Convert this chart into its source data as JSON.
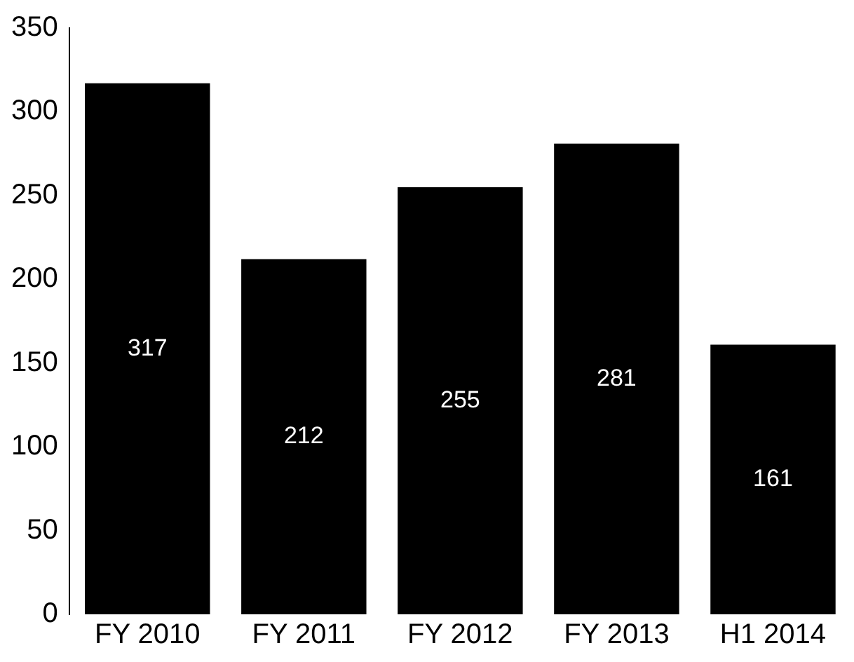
{
  "chart_data": {
    "type": "bar",
    "categories": [
      "FY 2010",
      "FY 2011",
      "FY 2012",
      "FY 2013",
      "H1 2014"
    ],
    "values": [
      317,
      212,
      255,
      281,
      161
    ],
    "color": "#000000",
    "ylim": [
      0,
      350
    ],
    "yticks": [
      0,
      50,
      100,
      150,
      200,
      250,
      300,
      350
    ],
    "grid": false,
    "legend": false,
    "data_labels": true
  }
}
